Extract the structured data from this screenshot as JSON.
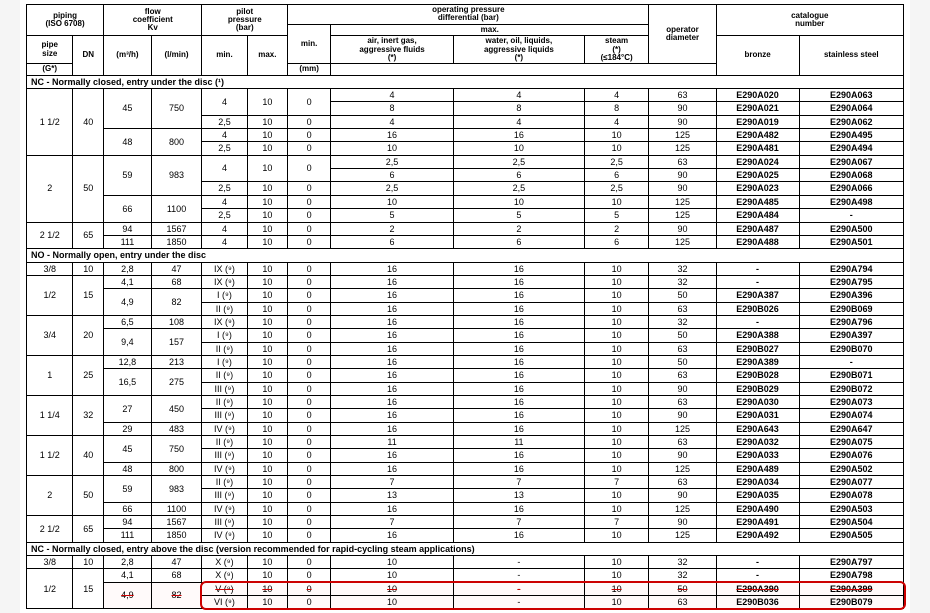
{
  "header": {
    "piping": "piping\n(ISO 6708)",
    "pipe_size": "pipe\nsize",
    "dn": "DN",
    "g": "(G*)",
    "flow_coef": "flow\ncoefficient\nKv",
    "m3h": "(m³/h)",
    "lmin": "(l/min)",
    "pilot_pressure": "pilot\npressure\n(bar)",
    "pp_min": "min.",
    "pp_max": "max.",
    "op_diff": "operating pressure\ndifferential (bar)",
    "opd_min": "min.",
    "opd_max": "max.",
    "air": "air, inert gas,\naggressive fluids\n(*)",
    "water": "water, oil, liquids,\naggressive liquids\n(*)",
    "steam": "steam\n(*)\n(≤184°C)",
    "operator": "operator\ndiameter",
    "mm": "(mm)",
    "catalogue": "catalogue\nnumber",
    "bronze": "bronze",
    "stainless": "stainless steel"
  },
  "sections": [
    {
      "title": "NC - Normally closed, entry under the disc (¹)",
      "rows": [
        {
          "ps": "1 1/2",
          "dn": "40",
          "grp": [
            {
              "m": "45",
              "l": "750",
              "sub": [
                {
                  "pmn": "4",
                  "pmx": "10",
                  "mn": "0",
                  "a": "4",
                  "w": "4",
                  "s": "4",
                  "od": "63",
                  "bz": "E290A020",
                  "ss": "E290A063"
                },
                {
                  "pmn": "",
                  "pmx": "",
                  "mn": "",
                  "a": "8",
                  "w": "8",
                  "s": "8",
                  "od": "90",
                  "bz": "E290A021",
                  "ss": "E290A064"
                },
                {
                  "pmn": "2,5",
                  "pmx": "10",
                  "mn": "0",
                  "a": "4",
                  "w": "4",
                  "s": "4",
                  "od": "90",
                  "bz": "E290A019",
                  "ss": "E290A062"
                }
              ]
            },
            {
              "m": "48",
              "l": "800",
              "sub": [
                {
                  "pmn": "4",
                  "pmx": "10",
                  "mn": "0",
                  "a": "16",
                  "w": "16",
                  "s": "10",
                  "od": "125",
                  "bz": "E290A482",
                  "ss": "E290A495"
                },
                {
                  "pmn": "2,5",
                  "pmx": "10",
                  "mn": "0",
                  "a": "10",
                  "w": "10",
                  "s": "10",
                  "od": "125",
                  "bz": "E290A481",
                  "ss": "E290A494"
                }
              ]
            }
          ]
        },
        {
          "ps": "2",
          "dn": "50",
          "grp": [
            {
              "m": "59",
              "l": "983",
              "sub": [
                {
                  "pmn": "4",
                  "pmx": "10",
                  "mn": "0",
                  "a": "2,5",
                  "w": "2,5",
                  "s": "2,5",
                  "od": "63",
                  "bz": "E290A024",
                  "ss": "E290A067"
                },
                {
                  "pmn": "",
                  "pmx": "",
                  "mn": "",
                  "a": "6",
                  "w": "6",
                  "s": "6",
                  "od": "90",
                  "bz": "E290A025",
                  "ss": "E290A068"
                },
                {
                  "pmn": "2,5",
                  "pmx": "10",
                  "mn": "0",
                  "a": "2,5",
                  "w": "2,5",
                  "s": "2,5",
                  "od": "90",
                  "bz": "E290A023",
                  "ss": "E290A066"
                }
              ]
            },
            {
              "m": "66",
              "l": "1100",
              "sub": [
                {
                  "pmn": "4",
                  "pmx": "10",
                  "mn": "0",
                  "a": "10",
                  "w": "10",
                  "s": "10",
                  "od": "125",
                  "bz": "E290A485",
                  "ss": "E290A498"
                },
                {
                  "pmn": "2,5",
                  "pmx": "10",
                  "mn": "0",
                  "a": "5",
                  "w": "5",
                  "s": "5",
                  "od": "125",
                  "bz": "E290A484",
                  "ss": "-"
                }
              ]
            }
          ]
        },
        {
          "ps": "2 1/2",
          "dn": "65",
          "grp": [
            {
              "m": "94",
              "l": "1567",
              "sub": [
                {
                  "pmn": "4",
                  "pmx": "10",
                  "mn": "0",
                  "a": "2",
                  "w": "2",
                  "s": "2",
                  "od": "90",
                  "bz": "E290A487",
                  "ss": "E290A500"
                }
              ]
            },
            {
              "m": "111",
              "l": "1850",
              "sub": [
                {
                  "pmn": "4",
                  "pmx": "10",
                  "mn": "0",
                  "a": "6",
                  "w": "6",
                  "s": "6",
                  "od": "125",
                  "bz": "E290A488",
                  "ss": "E290A501"
                }
              ]
            }
          ]
        }
      ]
    },
    {
      "title": "NO - Normally open, entry under the disc",
      "rows": [
        {
          "ps": "3/8",
          "dn": "10",
          "grp": [
            {
              "m": "2,8",
              "l": "47",
              "sub": [
                {
                  "pmn": "IX (⁹)",
                  "pmx": "10",
                  "mn": "0",
                  "a": "16",
                  "w": "16",
                  "s": "10",
                  "od": "32",
                  "bz": "-",
                  "ss": "E290A794"
                }
              ]
            }
          ]
        },
        {
          "ps": "1/2",
          "dn": "15",
          "grp": [
            {
              "m": "4,1",
              "l": "68",
              "sub": [
                {
                  "pmn": "IX (⁹)",
                  "pmx": "10",
                  "mn": "0",
                  "a": "16",
                  "w": "16",
                  "s": "10",
                  "od": "32",
                  "bz": "-",
                  "ss": "E290A795"
                }
              ]
            },
            {
              "m": "4,9",
              "l": "82",
              "sub": [
                {
                  "pmn": "I (⁹)",
                  "pmx": "10",
                  "mn": "0",
                  "a": "16",
                  "w": "16",
                  "s": "10",
                  "od": "50",
                  "bz": "E290A387",
                  "ss": "E290A396"
                },
                {
                  "pmn": "II (⁹)",
                  "pmx": "10",
                  "mn": "0",
                  "a": "16",
                  "w": "16",
                  "s": "10",
                  "od": "63",
                  "bz": "E290B026",
                  "ss": "E290B069"
                }
              ]
            }
          ]
        },
        {
          "ps": "3/4",
          "dn": "20",
          "grp": [
            {
              "m": "6,5",
              "l": "108",
              "sub": [
                {
                  "pmn": "IX (⁹)",
                  "pmx": "10",
                  "mn": "0",
                  "a": "16",
                  "w": "16",
                  "s": "10",
                  "od": "32",
                  "bz": "-",
                  "ss": "E290A796"
                }
              ]
            },
            {
              "m": "9,4",
              "l": "157",
              "sub": [
                {
                  "pmn": "I (⁹)",
                  "pmx": "10",
                  "mn": "0",
                  "a": "16",
                  "w": "16",
                  "s": "10",
                  "od": "50",
                  "bz": "E290A388",
                  "ss": "E290A397"
                },
                {
                  "pmn": "II (⁹)",
                  "pmx": "10",
                  "mn": "0",
                  "a": "16",
                  "w": "16",
                  "s": "10",
                  "od": "63",
                  "bz": "E290B027",
                  "ss": "E290B070"
                }
              ]
            }
          ]
        },
        {
          "ps": "1",
          "dn": "25",
          "grp": [
            {
              "m": "12,8",
              "l": "213",
              "sub": [
                {
                  "pmn": "I (⁹)",
                  "pmx": "10",
                  "mn": "0",
                  "a": "16",
                  "w": "16",
                  "s": "10",
                  "od": "50",
                  "bz": "E290A389",
                  "ss": "-"
                }
              ]
            },
            {
              "m": "16,5",
              "l": "275",
              "sub": [
                {
                  "pmn": "II (⁹)",
                  "pmx": "10",
                  "mn": "0",
                  "a": "16",
                  "w": "16",
                  "s": "10",
                  "od": "63",
                  "bz": "E290B028",
                  "ss": "E290B071"
                },
                {
                  "pmn": "III (⁹)",
                  "pmx": "10",
                  "mn": "0",
                  "a": "16",
                  "w": "16",
                  "s": "10",
                  "od": "90",
                  "bz": "E290B029",
                  "ss": "E290B072"
                }
              ]
            }
          ]
        },
        {
          "ps": "1 1/4",
          "dn": "32",
          "grp": [
            {
              "m": "27",
              "l": "450",
              "sub": [
                {
                  "pmn": "II (⁹)",
                  "pmx": "10",
                  "mn": "0",
                  "a": "16",
                  "w": "16",
                  "s": "10",
                  "od": "63",
                  "bz": "E290A030",
                  "ss": "E290A073"
                },
                {
                  "pmn": "III (⁹)",
                  "pmx": "10",
                  "mn": "0",
                  "a": "16",
                  "w": "16",
                  "s": "10",
                  "od": "90",
                  "bz": "E290A031",
                  "ss": "E290A074"
                }
              ]
            },
            {
              "m": "29",
              "l": "483",
              "sub": [
                {
                  "pmn": "IV (⁹)",
                  "pmx": "10",
                  "mn": "0",
                  "a": "16",
                  "w": "16",
                  "s": "10",
                  "od": "125",
                  "bz": "E290A643",
                  "ss": "E290A647"
                }
              ]
            }
          ]
        },
        {
          "ps": "1 1/2",
          "dn": "40",
          "grp": [
            {
              "m": "45",
              "l": "750",
              "sub": [
                {
                  "pmn": "II (⁹)",
                  "pmx": "10",
                  "mn": "0",
                  "a": "11",
                  "w": "11",
                  "s": "10",
                  "od": "63",
                  "bz": "E290A032",
                  "ss": "E290A075"
                },
                {
                  "pmn": "III (⁹)",
                  "pmx": "10",
                  "mn": "0",
                  "a": "16",
                  "w": "16",
                  "s": "10",
                  "od": "90",
                  "bz": "E290A033",
                  "ss": "E290A076"
                }
              ]
            },
            {
              "m": "48",
              "l": "800",
              "sub": [
                {
                  "pmn": "IV (⁹)",
                  "pmx": "10",
                  "mn": "0",
                  "a": "16",
                  "w": "16",
                  "s": "10",
                  "od": "125",
                  "bz": "E290A489",
                  "ss": "E290A502"
                }
              ]
            }
          ]
        },
        {
          "ps": "2",
          "dn": "50",
          "grp": [
            {
              "m": "59",
              "l": "983",
              "sub": [
                {
                  "pmn": "II (⁹)",
                  "pmx": "10",
                  "mn": "0",
                  "a": "7",
                  "w": "7",
                  "s": "7",
                  "od": "63",
                  "bz": "E290A034",
                  "ss": "E290A077"
                },
                {
                  "pmn": "III (⁹)",
                  "pmx": "10",
                  "mn": "0",
                  "a": "13",
                  "w": "13",
                  "s": "10",
                  "od": "90",
                  "bz": "E290A035",
                  "ss": "E290A078"
                }
              ]
            },
            {
              "m": "66",
              "l": "1100",
              "sub": [
                {
                  "pmn": "IV (⁹)",
                  "pmx": "10",
                  "mn": "0",
                  "a": "16",
                  "w": "16",
                  "s": "10",
                  "od": "125",
                  "bz": "E290A490",
                  "ss": "E290A503"
                }
              ]
            }
          ]
        },
        {
          "ps": "2 1/2",
          "dn": "65",
          "grp": [
            {
              "m": "94",
              "l": "1567",
              "sub": [
                {
                  "pmn": "III (⁹)",
                  "pmx": "10",
                  "mn": "0",
                  "a": "7",
                  "w": "7",
                  "s": "7",
                  "od": "90",
                  "bz": "E290A491",
                  "ss": "E290A504"
                }
              ]
            },
            {
              "m": "111",
              "l": "1850",
              "sub": [
                {
                  "pmn": "IV (⁹)",
                  "pmx": "10",
                  "mn": "0",
                  "a": "16",
                  "w": "16",
                  "s": "10",
                  "od": "125",
                  "bz": "E290A492",
                  "ss": "E290A505"
                }
              ]
            }
          ]
        }
      ]
    },
    {
      "title": "NC - Normally closed, entry above the disc (version recommended for rapid-cycling steam applications)",
      "rows": [
        {
          "ps": "3/8",
          "dn": "10",
          "grp": [
            {
              "m": "2,8",
              "l": "47",
              "sub": [
                {
                  "pmn": "X (⁹)",
                  "pmx": "10",
                  "mn": "0",
                  "a": "10",
                  "w": "-",
                  "s": "10",
                  "od": "32",
                  "bz": "-",
                  "ss": "E290A797"
                }
              ]
            }
          ]
        },
        {
          "ps": "1/2",
          "dn": "15",
          "grp": [
            {
              "m": "4,1",
              "l": "68",
              "sub": [
                {
                  "pmn": "X (⁹)",
                  "pmx": "10",
                  "mn": "0",
                  "a": "10",
                  "w": "-",
                  "s": "10",
                  "od": "32",
                  "bz": "-",
                  "ss": "E290A798"
                }
              ]
            },
            {
              "m": "4,9",
              "l": "82",
              "sub": [
                {
                  "pmn": "V (⁹)",
                  "pmx": "10",
                  "mn": "0",
                  "a": "10",
                  "w": "-",
                  "s": "10",
                  "od": "50",
                  "bz": "E290A390",
                  "ss": "E290A399",
                  "hl": true
                },
                {
                  "pmn": "VI (⁹)",
                  "pmx": "10",
                  "mn": "0",
                  "a": "10",
                  "w": "-",
                  "s": "10",
                  "od": "63",
                  "bz": "E290B036",
                  "ss": "E290B079",
                  "hl": true
                }
              ]
            }
          ]
        }
      ]
    }
  ]
}
